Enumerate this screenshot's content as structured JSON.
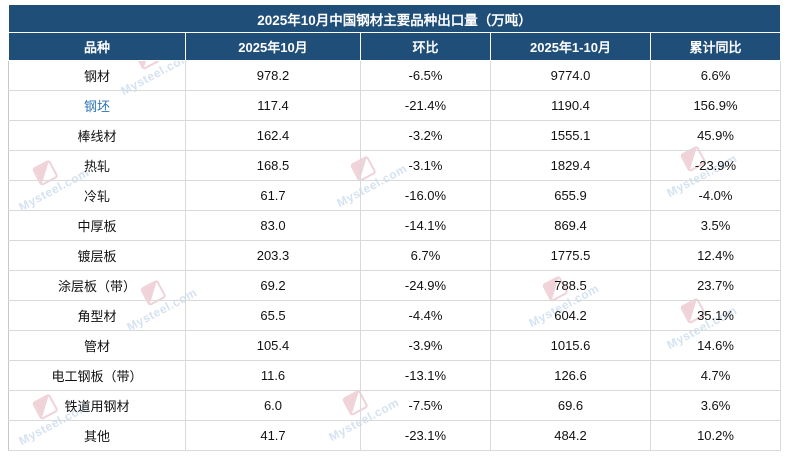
{
  "chart_data": {
    "type": "table",
    "title": "2025年10月中国钢材主要品种出口量（万吨）",
    "columns": [
      "品种",
      "2025年10月",
      "环比",
      "2025年1-10月",
      "累计同比"
    ],
    "rows": [
      [
        "钢材",
        "978.2",
        "-6.5%",
        "9774.0",
        "6.6%"
      ],
      [
        "钢坯",
        "117.4",
        "-21.4%",
        "1190.4",
        "156.9%"
      ],
      [
        "棒线材",
        "162.4",
        "-3.2%",
        "1555.1",
        "45.9%"
      ],
      [
        "热轧",
        "168.5",
        "-3.1%",
        "1829.4",
        "-23.9%"
      ],
      [
        "冷轧",
        "61.7",
        "-16.0%",
        "655.9",
        "-4.0%"
      ],
      [
        "中厚板",
        "83.0",
        "-14.1%",
        "869.4",
        "3.5%"
      ],
      [
        "镀层板",
        "203.3",
        "6.7%",
        "1775.5",
        "12.4%"
      ],
      [
        "涂层板（带）",
        "69.2",
        "-24.9%",
        "788.5",
        "23.7%"
      ],
      [
        "角型材",
        "65.5",
        "-4.4%",
        "604.2",
        "35.1%"
      ],
      [
        "管材",
        "105.4",
        "-3.9%",
        "1015.6",
        "14.6%"
      ],
      [
        "电工钢板（带）",
        "11.6",
        "-13.1%",
        "126.6",
        "4.7%"
      ],
      [
        "铁道用钢材",
        "6.0",
        "-7.5%",
        "69.6",
        "3.6%"
      ],
      [
        "其他",
        "41.7",
        "-23.1%",
        "484.2",
        "10.2%"
      ]
    ],
    "linked_rows": [
      "钢坯"
    ]
  },
  "colors": {
    "header_bg": "#1F4E79",
    "link_text": "#2e75b6"
  },
  "watermark": {
    "text": "Mysteel.com"
  }
}
